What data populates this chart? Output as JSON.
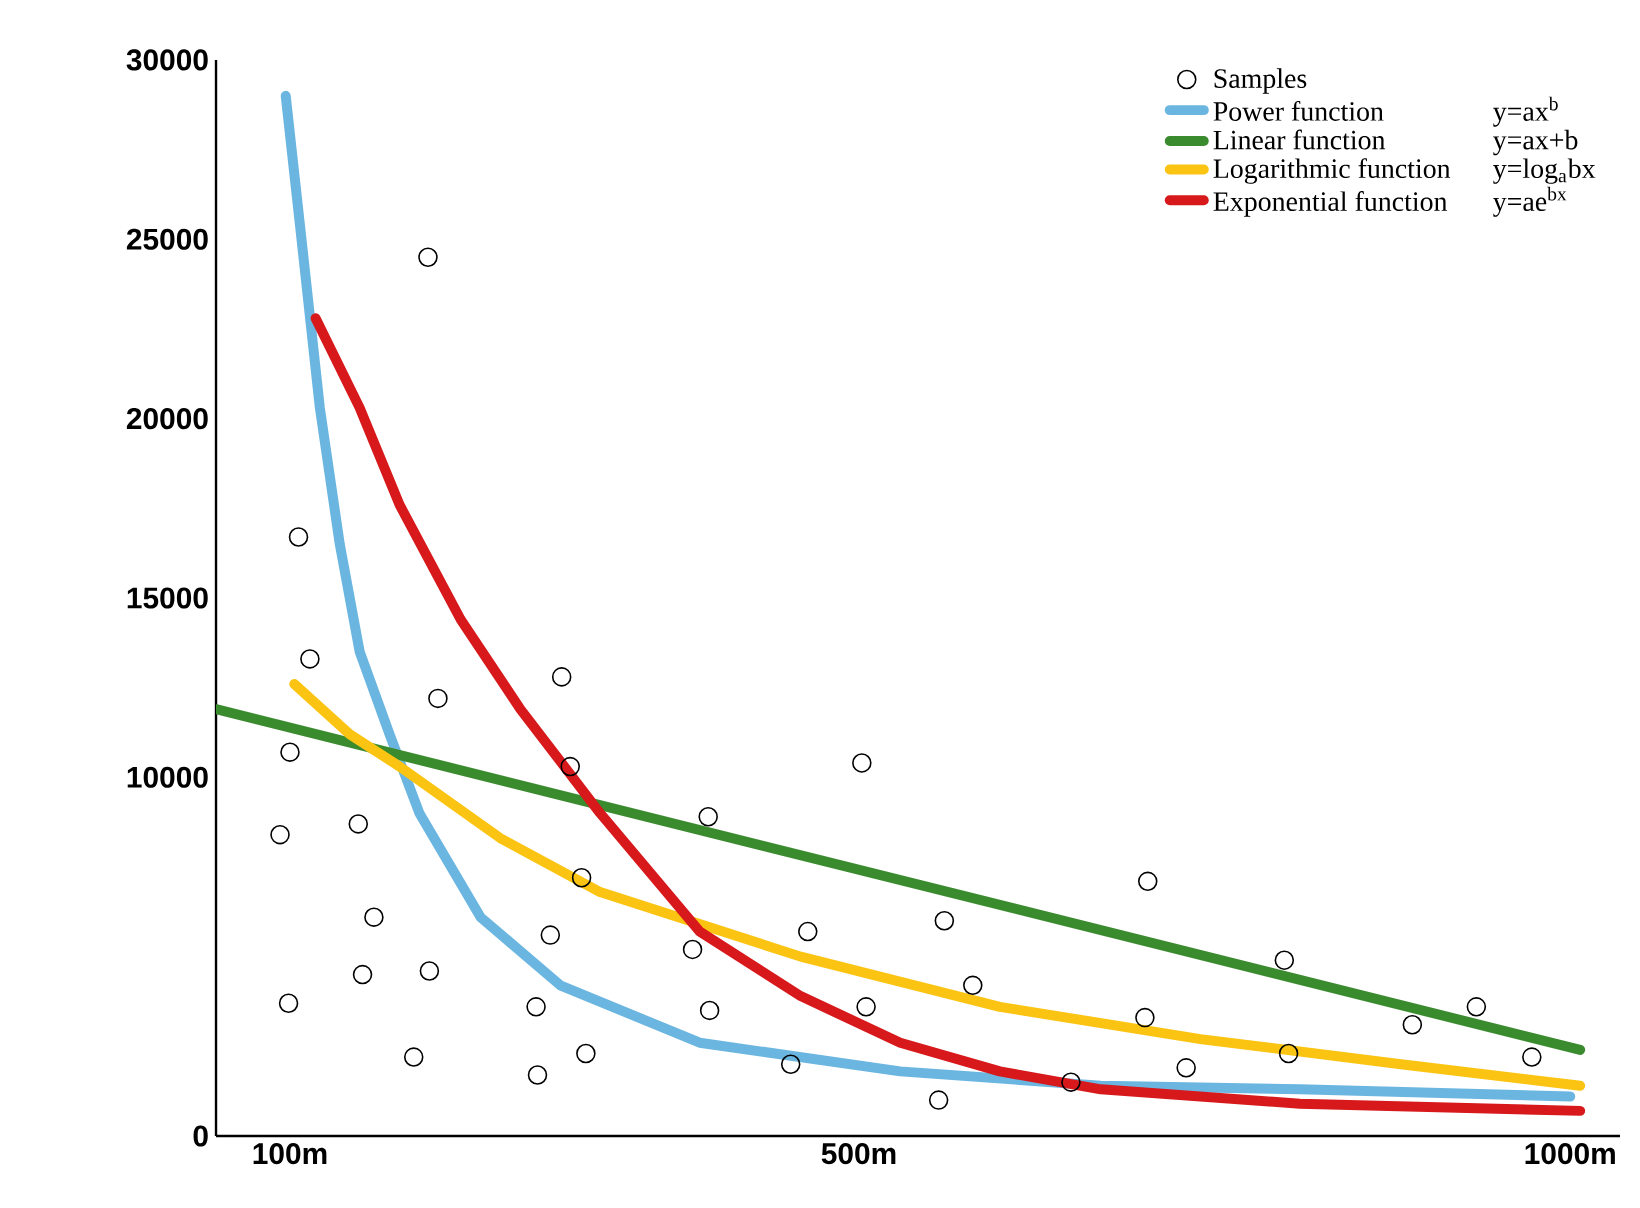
{
  "chart_data": {
    "type": "line",
    "xlim": [
      48,
      1035
    ],
    "xticks": [
      {
        "value": 100,
        "label": "100m"
      },
      {
        "value": 500,
        "label": "500m"
      },
      {
        "value": 1000,
        "label": "1000m"
      }
    ],
    "ylim": [
      0,
      30000
    ],
    "yticks": [
      0,
      10000,
      15000,
      20000,
      25000,
      30000
    ],
    "legend": "top right",
    "grid": false,
    "annotations": [
      "y=ax$^{b}$",
      "y=ax+b",
      "y=log$_{a}$bx",
      "y=ae$^{bx}$"
    ],
    "series": [
      {
        "name": "Samples",
        "type": "scatter",
        "marker": "circle",
        "color": "#000000",
        "x": [
          106,
          114,
          100,
          93,
          99,
          148,
          159,
          151,
          197,
          204,
          198,
          187,
          273,
          274,
          283,
          291,
          297,
          305,
          308,
          383,
          394,
          395,
          452,
          464,
          502,
          505,
          560,
          556,
          580,
          649,
          703,
          701,
          730,
          799,
          802,
          889,
          934,
          973
        ],
        "values": [
          16700,
          13300,
          10700,
          8400,
          3700,
          8700,
          6100,
          4500,
          24500,
          12200,
          4600,
          2200,
          3600,
          1700,
          5600,
          12800,
          10300,
          7200,
          2300,
          5200,
          8900,
          3500,
          2000,
          5700,
          10400,
          3600,
          6000,
          1000,
          4200,
          1500,
          7100,
          3300,
          1900,
          4900,
          2300,
          3100,
          3600,
          2200
        ]
      },
      {
        "name": "Power function",
        "marker": "none",
        "line_style": "solid",
        "color": "#6bb6e0",
        "x": [
          97,
          107,
          121,
          135,
          149,
          170,
          191,
          234,
          290,
          388,
          529,
          670,
          810,
          1000
        ],
        "values": [
          29000,
          25400,
          20300,
          16500,
          13500,
          11200,
          9000,
          6100,
          4200,
          2600,
          1800,
          1400,
          1300,
          1100
        ]
      },
      {
        "name": "Linear function",
        "marker": "none",
        "line_style": "solid",
        "color": "#3a8a2e",
        "x": [
          48,
          1007
        ],
        "values": [
          11900,
          2400
        ]
      },
      {
        "name": "Logarithmic function",
        "marker": "none",
        "line_style": "solid",
        "color": "#fbc412",
        "x": [
          103,
          142,
          177,
          248,
          318,
          459,
          599,
          740,
          881,
          1007
        ],
        "values": [
          12600,
          11200,
          10300,
          8300,
          6800,
          5000,
          3600,
          2700,
          2000,
          1400
        ]
      },
      {
        "name": "Exponential function",
        "marker": "none",
        "line_style": "solid",
        "color": "#d7191c",
        "x": [
          118,
          149,
          177,
          220,
          262,
          318,
          388,
          459,
          529,
          599,
          670,
          810,
          1007
        ],
        "values": [
          22800,
          20300,
          17600,
          14400,
          11900,
          9000,
          5700,
          3900,
          2600,
          1800,
          1300,
          900,
          700
        ]
      }
    ]
  }
}
